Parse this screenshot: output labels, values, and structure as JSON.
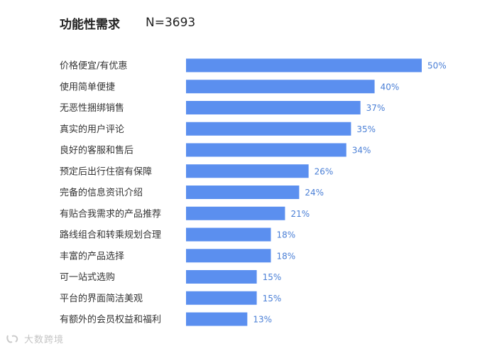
{
  "header": {
    "title": "功能性需求",
    "sample": "N=3693"
  },
  "watermark": {
    "text": "大数跨境"
  },
  "chart_data": {
    "type": "bar",
    "orientation": "horizontal",
    "categories": [
      "价格便宜/有优惠",
      "使用简单便捷",
      "无恶性捆绑销售",
      "真实的用户评论",
      "良好的客服和售后",
      "预定后出行住宿有保障",
      "完备的信息资讯介绍",
      "有贴合我需求的产品推荐",
      "路线组合和转乘规划合理",
      "丰富的产品选择",
      "可一站式选购",
      "平台的界面简洁美观",
      "有额外的会员权益和福利"
    ],
    "values": [
      50,
      40,
      37,
      35,
      34,
      26,
      24,
      21,
      18,
      18,
      15,
      15,
      13
    ],
    "value_labels": [
      "50%",
      "40%",
      "37%",
      "35%",
      "34%",
      "26%",
      "24%",
      "21%",
      "18%",
      "18%",
      "15%",
      "15%",
      "13%"
    ],
    "unit": "%",
    "xlim": [
      0,
      50
    ],
    "bar_color": "#5B8FEF",
    "label_color": "#4A7FD6",
    "grid": false,
    "legend": "none"
  }
}
